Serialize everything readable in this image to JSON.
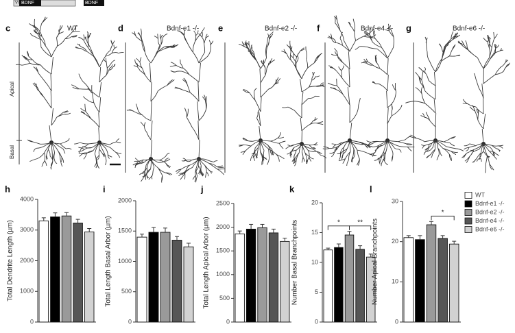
{
  "top_strip": [
    "VI",
    "BDNF",
    "BDNF"
  ],
  "neuron_panels": [
    {
      "panel": "c",
      "title": "WT"
    },
    {
      "panel": "d",
      "title": "Bdnf-e1 -/-"
    },
    {
      "panel": "e",
      "title": "Bdnf-e2 -/-"
    },
    {
      "panel": "f",
      "title": "Bdnf-e4 -/-"
    },
    {
      "panel": "g",
      "title": "Bdnf-e6 -/-"
    }
  ],
  "regions": [
    "Apical",
    "Basal"
  ],
  "legend": [
    {
      "name": "WT",
      "color": "#ffffff"
    },
    {
      "name": "Bdnf-e1 -/-",
      "color": "#000000"
    },
    {
      "name": "Bdnf-e2 -/-",
      "color": "#9a9a9a"
    },
    {
      "name": "Bdnf-e4 -/-",
      "color": "#565656"
    },
    {
      "name": "Bdnf-e6 -/-",
      "color": "#d2d2d2"
    }
  ],
  "chart_data": [
    {
      "type": "bar",
      "panel": "h",
      "ylabel": "Total Dendrite Length (µm)",
      "values": [
        3300,
        3430,
        3460,
        3230,
        2940
      ],
      "errors": [
        100,
        130,
        110,
        120,
        110
      ],
      "ylim": [
        0,
        4000
      ],
      "yticks": [
        0,
        1000,
        2000,
        3000,
        4000
      ],
      "annotations": []
    },
    {
      "type": "bar",
      "panel": "i",
      "ylabel": "Total Length Basal Arbor (µm)",
      "values": [
        1400,
        1480,
        1480,
        1350,
        1240
      ],
      "errors": [
        50,
        80,
        70,
        60,
        60
      ],
      "ylim": [
        0,
        2000
      ],
      "yticks": [
        0,
        500,
        1000,
        1500,
        2000
      ],
      "annotations": []
    },
    {
      "type": "bar",
      "panel": "j",
      "ylabel": "Total Length Apical Arbor (µm)",
      "values": [
        1860,
        1960,
        1990,
        1880,
        1700
      ],
      "errors": [
        60,
        100,
        70,
        80,
        70
      ],
      "ylim": [
        0,
        2500
      ],
      "yticks": [
        0,
        500,
        1000,
        1500,
        2000,
        2500
      ],
      "annotations": []
    },
    {
      "type": "bar",
      "panel": "k",
      "ylabel": "Number Basal Branchpoints",
      "values": [
        12.1,
        12.5,
        14.6,
        12.2,
        10.9
      ],
      "errors": [
        0.3,
        0.6,
        0.6,
        0.6,
        0.5
      ],
      "ylim": [
        0,
        20
      ],
      "yticks": [
        0,
        5,
        10,
        15,
        20
      ],
      "annotations": [
        "*",
        "**"
      ]
    },
    {
      "type": "bar",
      "panel": "l",
      "ylabel": "Number Apical Branchpoints",
      "values": [
        21,
        20.5,
        24.2,
        20.8,
        19.4
      ],
      "errors": [
        0.5,
        1,
        0.8,
        0.7,
        0.7
      ],
      "ylim": [
        0,
        30
      ],
      "yticks": [
        0,
        10,
        20,
        30
      ],
      "annotations": [
        "*"
      ]
    }
  ]
}
